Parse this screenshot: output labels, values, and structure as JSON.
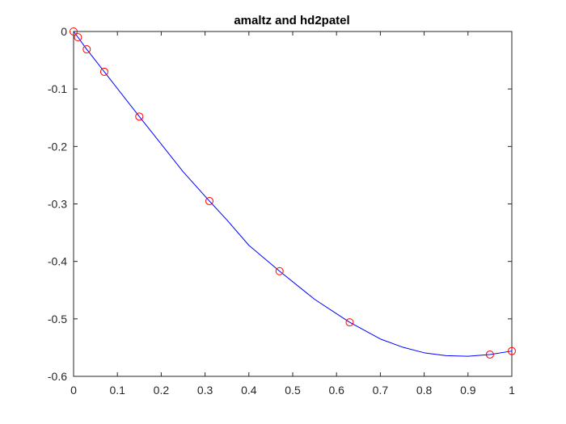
{
  "chart_data": {
    "type": "line",
    "title": "amaltz and hd2patel",
    "xlabel": "",
    "ylabel": "",
    "xlim": [
      0,
      1
    ],
    "ylim": [
      -0.6,
      0
    ],
    "grid": false,
    "x_ticks": [
      0,
      0.1,
      0.2,
      0.3,
      0.4,
      0.5,
      0.6,
      0.7,
      0.8,
      0.9,
      1
    ],
    "x_tick_labels": [
      "0",
      "0.1",
      "0.2",
      "0.3",
      "0.4",
      "0.5",
      "0.6",
      "0.7",
      "0.8",
      "0.9",
      "1"
    ],
    "y_ticks": [
      0,
      -0.1,
      -0.2,
      -0.3,
      -0.4,
      -0.5,
      -0.6
    ],
    "y_tick_labels": [
      "0",
      "-0.1",
      "-0.2",
      "-0.3",
      "-0.4",
      "-0.5",
      "-0.6"
    ],
    "series": [
      {
        "style": "line",
        "color": "#0000ff",
        "x": [
          0,
          0.01,
          0.03,
          0.07,
          0.15,
          0.2,
          0.25,
          0.31,
          0.35,
          0.4,
          0.47,
          0.55,
          0.63,
          0.7,
          0.75,
          0.8,
          0.85,
          0.9,
          0.95,
          1
        ],
        "y": [
          0,
          -0.01,
          -0.031,
          -0.07,
          -0.148,
          -0.196,
          -0.244,
          -0.295,
          -0.328,
          -0.372,
          -0.417,
          -0.466,
          -0.506,
          -0.535,
          -0.549,
          -0.559,
          -0.564,
          -0.565,
          -0.562,
          -0.556
        ]
      },
      {
        "style": "markers",
        "marker": "circle",
        "color": "#ff0000",
        "x": [
          0,
          0.01,
          0.03,
          0.07,
          0.15,
          0.31,
          0.47,
          0.63,
          0.95,
          1
        ],
        "y": [
          0,
          -0.01,
          -0.031,
          -0.07,
          -0.148,
          -0.295,
          -0.417,
          -0.506,
          -0.562,
          -0.556
        ]
      }
    ]
  }
}
